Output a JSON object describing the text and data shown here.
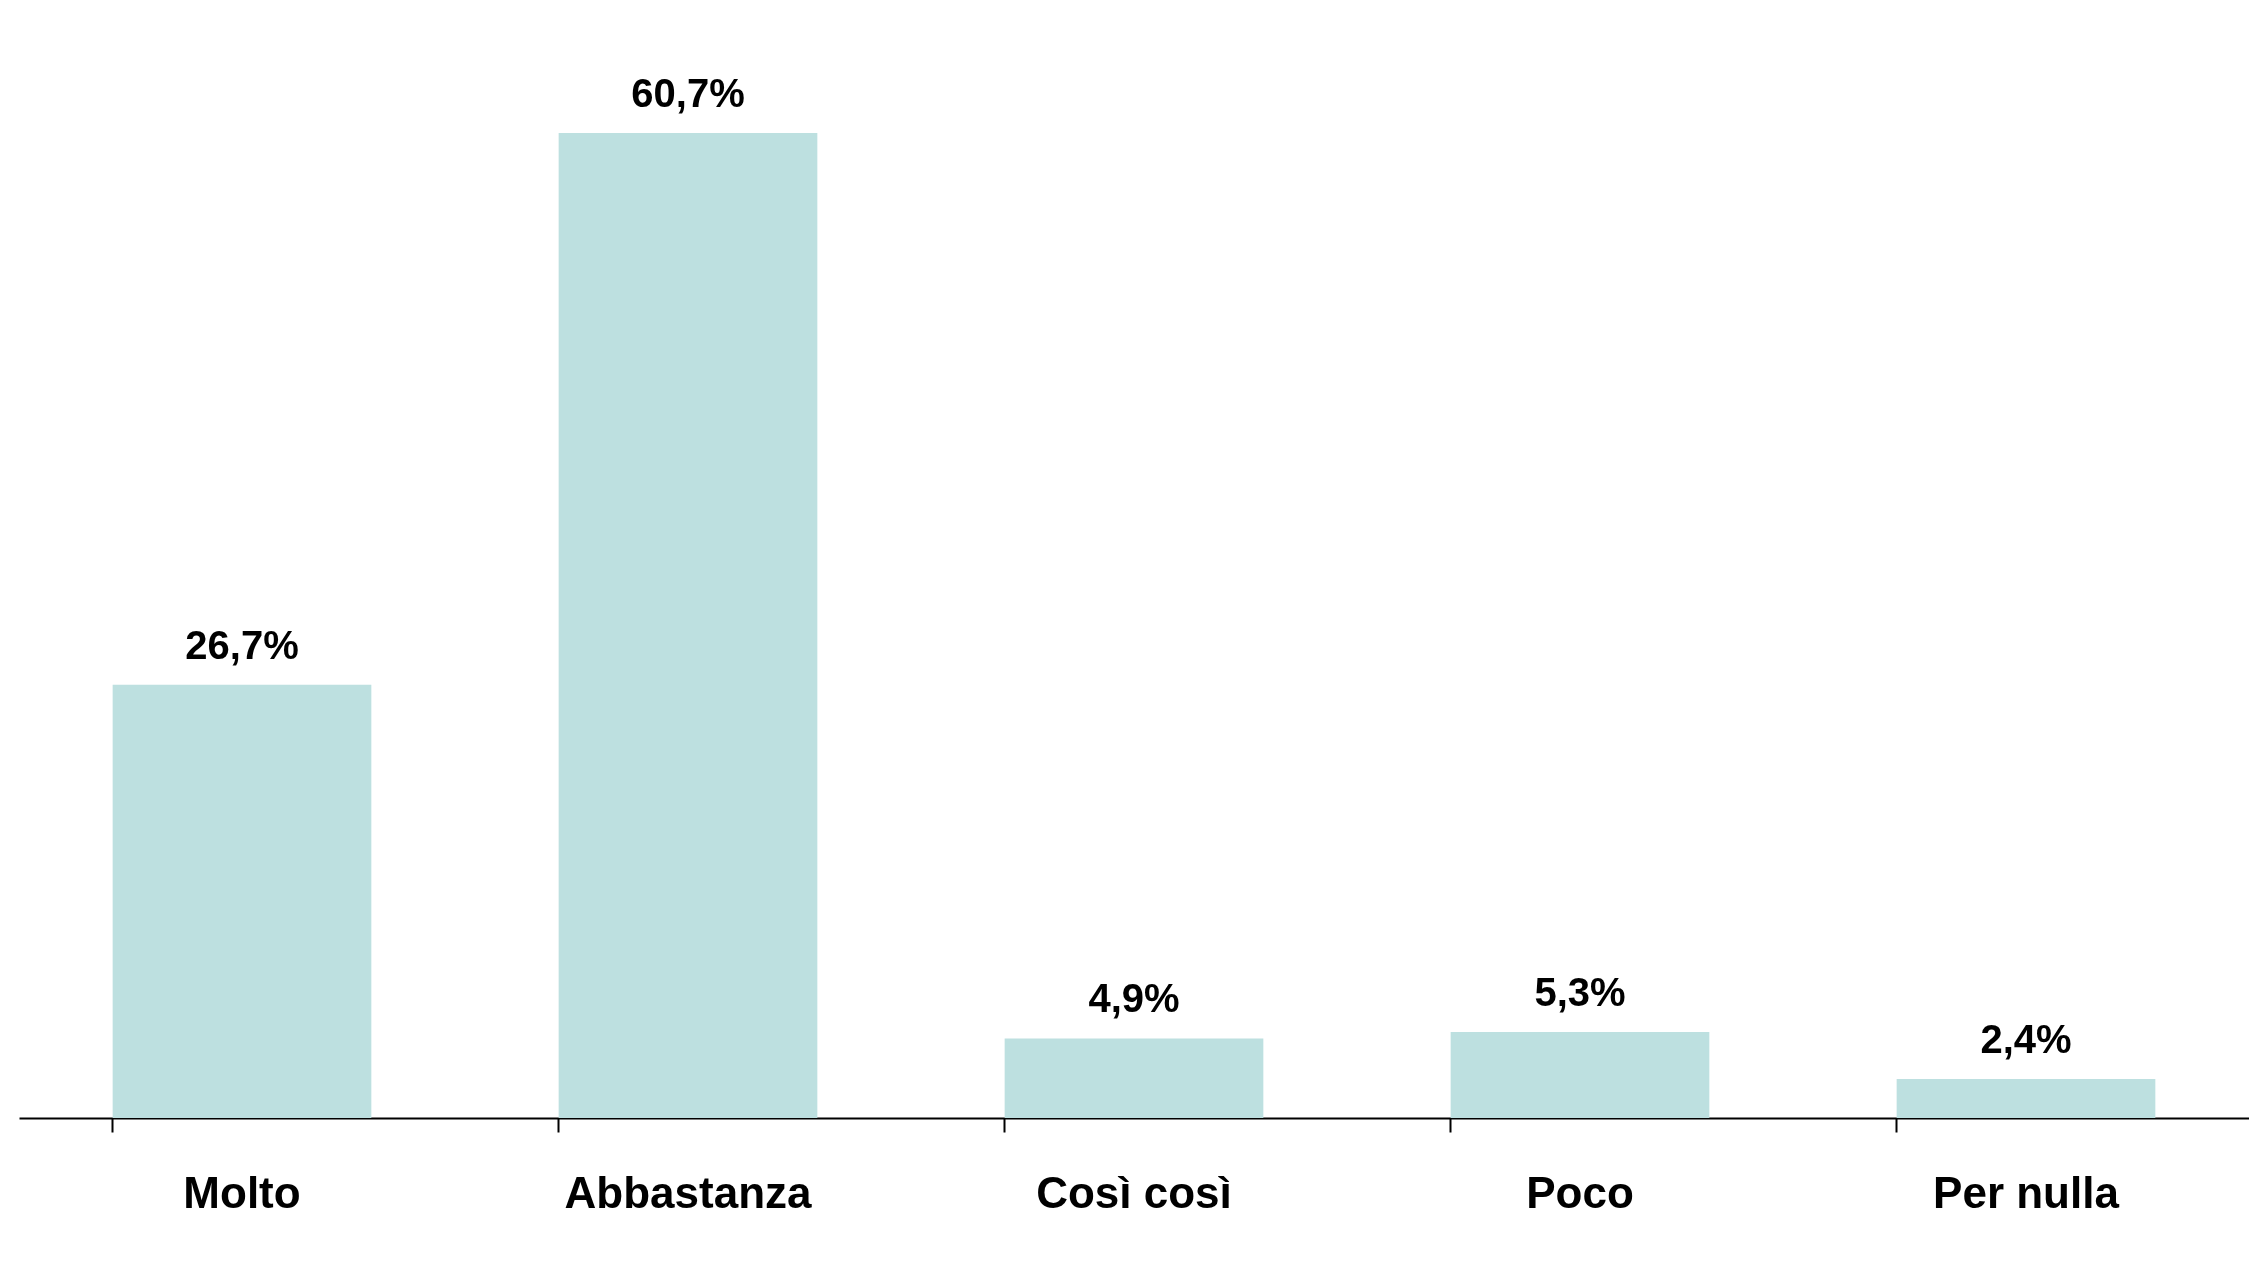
{
  "chart_data": {
    "type": "bar",
    "categories": [
      "Molto",
      "Abbastanza",
      "Così così",
      "Poco",
      "Per nulla"
    ],
    "values": [
      26.7,
      60.7,
      4.9,
      5.3,
      2.4
    ],
    "value_labels": [
      "26,7%",
      "60,7%",
      "4,9%",
      "5,3%",
      "2,4%"
    ],
    "color": "#bde0e0"
  }
}
